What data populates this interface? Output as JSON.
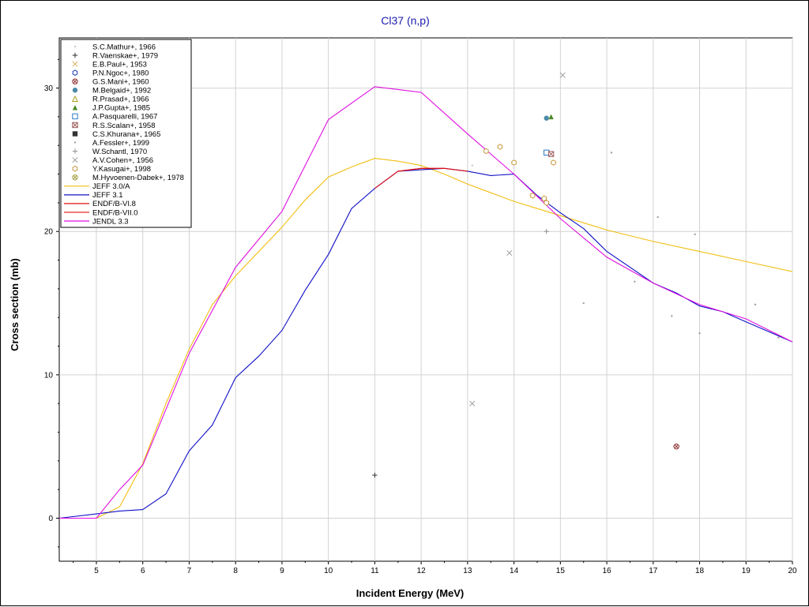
{
  "chart_data": {
    "type": "scatter",
    "title": "Cl37 (n,p)",
    "xlabel": "Incident Energy (MeV)",
    "ylabel": "Cross section (mb)",
    "xlim": [
      4.2,
      20
    ],
    "ylim": [
      -3,
      33.5
    ],
    "xticks": [
      5,
      6,
      7,
      8,
      9,
      10,
      11,
      12,
      13,
      14,
      15,
      16,
      17,
      18,
      19,
      20
    ],
    "yticks": [
      0,
      10,
      20,
      30
    ],
    "grid": true,
    "legend_position": "top-left",
    "experimental": [
      {
        "name": "S.C.Mathur+, 1966",
        "marker": "dot",
        "color": "#c8c8c8",
        "points": [
          [
            13.1,
            24.6
          ],
          [
            14.8,
            25.4
          ]
        ]
      },
      {
        "name": "R.Vaenskae+, 1979",
        "marker": "plus",
        "color": "#333333",
        "points": [
          [
            11.0,
            3.0
          ]
        ]
      },
      {
        "name": "E.B.Paul+, 1953",
        "marker": "x",
        "color": "#d9b060",
        "points": []
      },
      {
        "name": "P.N.Ngoc+, 1980",
        "marker": "hexagon",
        "color": "#1a3ab0",
        "points": []
      },
      {
        "name": "G.S.Mani+, 1960",
        "marker": "circle-x",
        "color": "#8b2a2a",
        "points": [
          [
            17.5,
            5.0
          ]
        ]
      },
      {
        "name": "M.Belgaid+, 1992",
        "marker": "filled-circle",
        "color": "#4a8aa8",
        "points": [
          [
            14.7,
            27.9
          ]
        ]
      },
      {
        "name": "R.Prasad+, 1966",
        "marker": "triangle",
        "color": "#b0a020",
        "points": []
      },
      {
        "name": "J.P.Gupta+, 1985",
        "marker": "filled-triangle",
        "color": "#4a8a2a",
        "points": [
          [
            14.8,
            28.0
          ]
        ]
      },
      {
        "name": "A.Pasquarelli, 1967",
        "marker": "square",
        "color": "#2a7ac8",
        "points": [
          [
            14.7,
            25.5
          ]
        ]
      },
      {
        "name": "R.S.Scalan+, 1958",
        "marker": "square-x",
        "color": "#a06060",
        "points": [
          [
            14.8,
            25.4
          ]
        ]
      },
      {
        "name": "C.S.Khurana+, 1965",
        "marker": "filled-square",
        "color": "#333333",
        "points": []
      },
      {
        "name": "A.Fessler+, 1999",
        "marker": "dot",
        "color": "#a0a0a0",
        "points": [
          [
            15.5,
            15.0
          ],
          [
            16.1,
            25.5
          ],
          [
            16.6,
            16.5
          ],
          [
            17.1,
            21.0
          ],
          [
            17.4,
            14.1
          ],
          [
            17.9,
            19.8
          ],
          [
            18.0,
            12.9
          ],
          [
            19.2,
            14.9
          ],
          [
            19.7,
            12.6
          ]
        ]
      },
      {
        "name": "W.Schantl, 1970",
        "marker": "plus",
        "color": "#909090",
        "points": [
          [
            14.7,
            20.0
          ]
        ]
      },
      {
        "name": "A.V.Cohen+, 1956",
        "marker": "x",
        "color": "#a0a0a0",
        "points": [
          [
            13.1,
            8.0
          ],
          [
            13.9,
            18.5
          ],
          [
            15.05,
            30.9
          ]
        ]
      },
      {
        "name": "Y.Kasugai+, 1998",
        "marker": "hexagon",
        "color": "#c89a40",
        "points": [
          [
            13.4,
            25.6
          ],
          [
            13.7,
            25.9
          ],
          [
            14.0,
            24.8
          ],
          [
            14.4,
            22.5
          ],
          [
            14.65,
            22.3
          ],
          [
            14.7,
            22.0
          ],
          [
            14.85,
            24.8
          ]
        ]
      },
      {
        "name": "M.Hyvoenen-Dabek+, 1978",
        "marker": "circle-x",
        "color": "#a0a040",
        "points": []
      }
    ],
    "evaluated": [
      {
        "name": "JEFF 3.0/A",
        "color": "#f2be10",
        "x": [
          4.2,
          5.0,
          5.5,
          6.0,
          6.5,
          7.0,
          7.5,
          8.0,
          8.5,
          9.0,
          9.5,
          10.0,
          10.5,
          11.0,
          11.5,
          12.0,
          12.5,
          13.0,
          13.5,
          14.0,
          14.5,
          15.0,
          15.5,
          16.0,
          17.0,
          18.0,
          19.0,
          20.0
        ],
        "y": [
          0,
          0,
          0.8,
          3.8,
          8.0,
          11.8,
          14.9,
          16.9,
          18.6,
          20.3,
          22.2,
          23.8,
          24.5,
          25.1,
          24.9,
          24.6,
          24.0,
          23.3,
          22.7,
          22.1,
          21.6,
          21.1,
          20.6,
          20.1,
          19.3,
          18.6,
          17.9,
          17.2
        ]
      },
      {
        "name": "JEFF 3.1",
        "color": "#1010c8",
        "x": [
          4.2,
          5.0,
          5.5,
          6.0,
          6.5,
          7.0,
          7.5,
          8.0,
          8.5,
          9.0,
          9.5,
          10.0,
          10.5,
          11.0,
          11.5,
          12.0,
          12.5,
          13.0,
          13.5,
          14.0,
          14.5,
          15.0,
          15.5,
          16.0,
          17.0,
          17.5,
          18.0,
          18.5,
          19.0,
          20.0
        ],
        "y": [
          0,
          0.3,
          0.5,
          0.6,
          1.7,
          4.7,
          6.5,
          9.8,
          11.3,
          13.1,
          15.9,
          18.4,
          21.6,
          23.0,
          24.2,
          24.3,
          24.4,
          24.2,
          23.9,
          24.0,
          22.5,
          21.3,
          20.2,
          18.6,
          16.4,
          15.7,
          14.8,
          14.4,
          13.7,
          12.3
        ]
      },
      {
        "name": "ENDF/B-VI.8",
        "color": "#e01010",
        "x": [
          11.5,
          12.0,
          12.5,
          13.0
        ],
        "y": [
          24.2,
          24.4,
          24.4,
          24.2
        ]
      },
      {
        "name": "ENDF/B-VII.0",
        "color": "#e01010",
        "x": [
          11.0,
          11.5,
          12.0,
          12.5
        ],
        "y": [
          23.0,
          24.2,
          24.4,
          24.4
        ]
      },
      {
        "name": "JENDL 3.3",
        "color": "#e010e0",
        "x": [
          4.2,
          5.0,
          5.5,
          6.0,
          7.0,
          8.0,
          9.0,
          10.0,
          11.0,
          12.0,
          13.0,
          14.0,
          15.0,
          16.0,
          17.0,
          18.0,
          19.0,
          20.0
        ],
        "y": [
          0,
          0,
          2.0,
          3.7,
          11.5,
          17.5,
          21.4,
          27.8,
          30.1,
          29.7,
          26.8,
          24.0,
          20.9,
          18.2,
          16.4,
          14.9,
          13.9,
          12.3
        ]
      }
    ]
  }
}
